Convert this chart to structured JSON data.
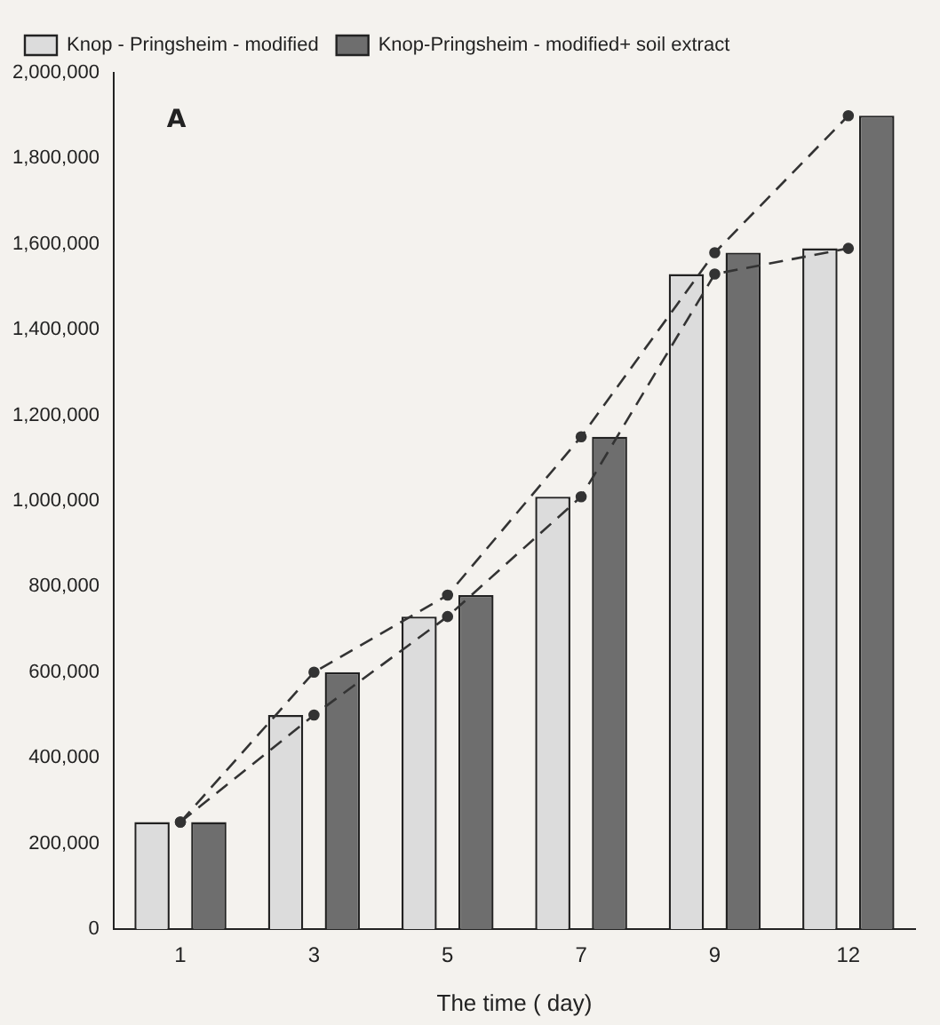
{
  "chart_data": {
    "type": "bar",
    "categories": [
      "1",
      "3",
      "5",
      "7",
      "9",
      "12"
    ],
    "xlabel": "The time ( day)",
    "annotations": [
      "A"
    ],
    "series": [
      {
        "name": "Knop - Pringsheim - modified",
        "color": "#dcdcdc",
        "values": [
          250000,
          500000,
          730000,
          1010000,
          1530000,
          1590000
        ]
      },
      {
        "name": "Knop-Pringsheim - modified+ soil extract",
        "color": "#6e6e6e",
        "values": [
          250000,
          600000,
          780000,
          1150000,
          1580000,
          1900000
        ]
      },
      {
        "type": "line",
        "color": "#333333",
        "line_style": "dashed",
        "marker": "circle",
        "values": [
          250000,
          500000,
          730000,
          1010000,
          1530000,
          1590000
        ]
      },
      {
        "type": "line",
        "color": "#333333",
        "line_style": "dashed",
        "marker": "circle",
        "values": [
          250000,
          600000,
          780000,
          1150000,
          1580000,
          1900000
        ]
      }
    ],
    "ylim": [
      0,
      2000000
    ],
    "yticks": [
      0,
      {
        "value": 200000,
        "label": "200,000"
      },
      {
        "value": 400000,
        "label": "400,000"
      },
      {
        "value": 600000,
        "label": "600,000"
      },
      {
        "value": 800000,
        "label": "800,000"
      },
      {
        "value": 1000000,
        "label": "1,000,000"
      },
      {
        "value": 1200000,
        "label": "1,200,000"
      },
      {
        "value": 1400000,
        "label": "1,400,000"
      },
      {
        "value": 1600000,
        "label": "1,600,000"
      },
      {
        "value": 1800000,
        "label": "1,800,000"
      },
      {
        "value": 2000000,
        "label": "2,000,000"
      }
    ],
    "grid": false,
    "legend": "top left"
  }
}
